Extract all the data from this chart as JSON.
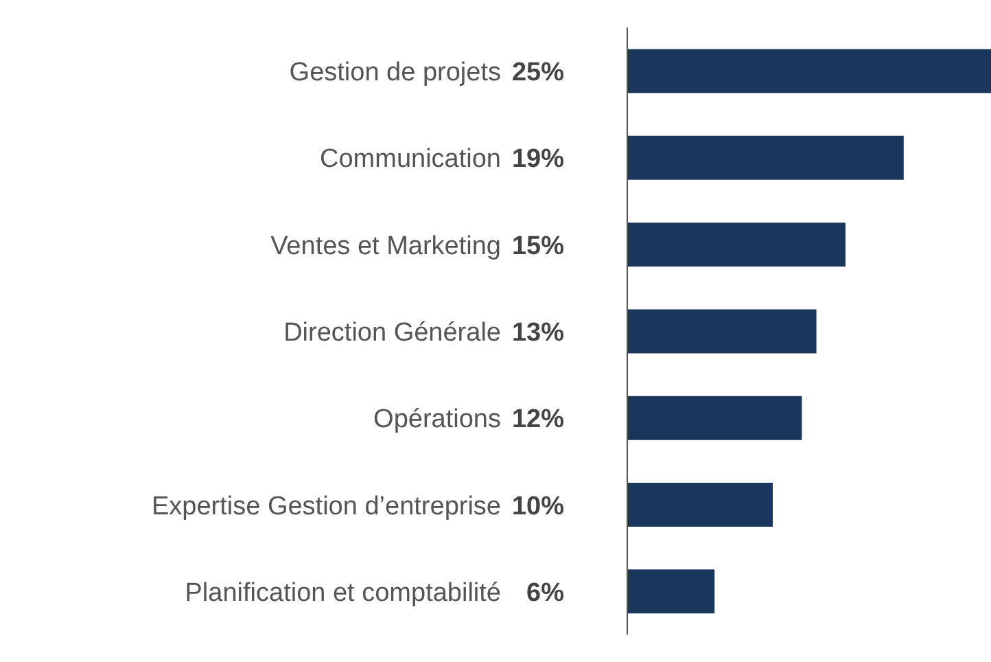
{
  "chart_data": {
    "type": "bar",
    "orientation": "horizontal",
    "categories": [
      "Gestion de projets",
      "Communication",
      "Ventes et Marketing",
      "Direction Générale",
      "Opérations",
      "Expertise Gestion d’entreprise",
      "Planification et comptabilité"
    ],
    "values": [
      25,
      19,
      15,
      13,
      12,
      10,
      6
    ],
    "value_labels": [
      "25%",
      "19%",
      "15%",
      "13%",
      "12%",
      "10%",
      "6%"
    ],
    "color": "#1b365d"
  }
}
